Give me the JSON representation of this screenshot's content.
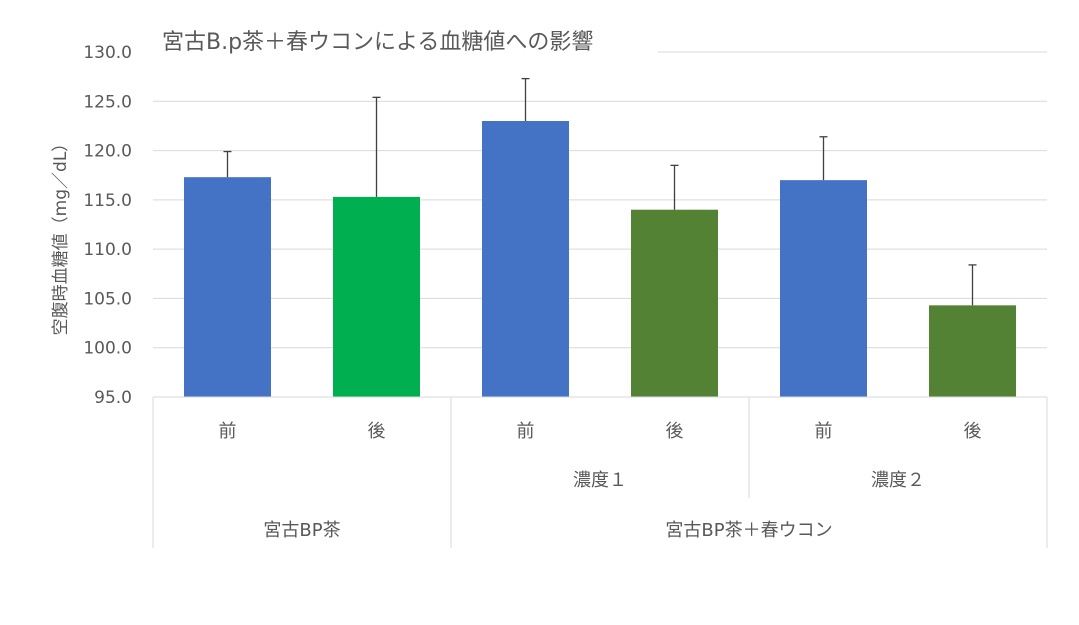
{
  "chart_data": {
    "type": "bar",
    "title": "宮古B.p茶＋春ウコンによる血糖値への影響",
    "ylabel": "空腹時血糖値（mg／dL）",
    "xlabel": "",
    "ylim": [
      95,
      130
    ],
    "ytick_step": 5,
    "ytick_labels": [
      "95.0",
      "100.0",
      "105.0",
      "110.0",
      "115.0",
      "120.0",
      "125.0",
      "130.0"
    ],
    "grid": true,
    "legend": "none",
    "categories": [
      "前",
      "後",
      "前",
      "後",
      "前",
      "後"
    ],
    "values": [
      117.3,
      115.3,
      123.0,
      114.0,
      117.0,
      104.3
    ],
    "errors": [
      2.6,
      10.1,
      4.3,
      4.5,
      4.4,
      4.1
    ],
    "bar_colors": [
      "#4472C4",
      "#00B050",
      "#4472C4",
      "#548235",
      "#4472C4",
      "#548235"
    ],
    "subgroups": [
      {
        "label": "",
        "span": [
          0,
          1
        ]
      },
      {
        "label": "濃度１",
        "span": [
          2,
          3
        ]
      },
      {
        "label": "濃度２",
        "span": [
          4,
          5
        ]
      }
    ],
    "groups": [
      {
        "label": "宮古BP茶",
        "span": [
          0,
          1
        ]
      },
      {
        "label": "宮古BP茶＋春ウコン",
        "span": [
          2,
          5
        ]
      }
    ]
  },
  "colors": {
    "grid": "#D9D9D9",
    "axis_text": "#595959",
    "error_bar": "#404040"
  }
}
